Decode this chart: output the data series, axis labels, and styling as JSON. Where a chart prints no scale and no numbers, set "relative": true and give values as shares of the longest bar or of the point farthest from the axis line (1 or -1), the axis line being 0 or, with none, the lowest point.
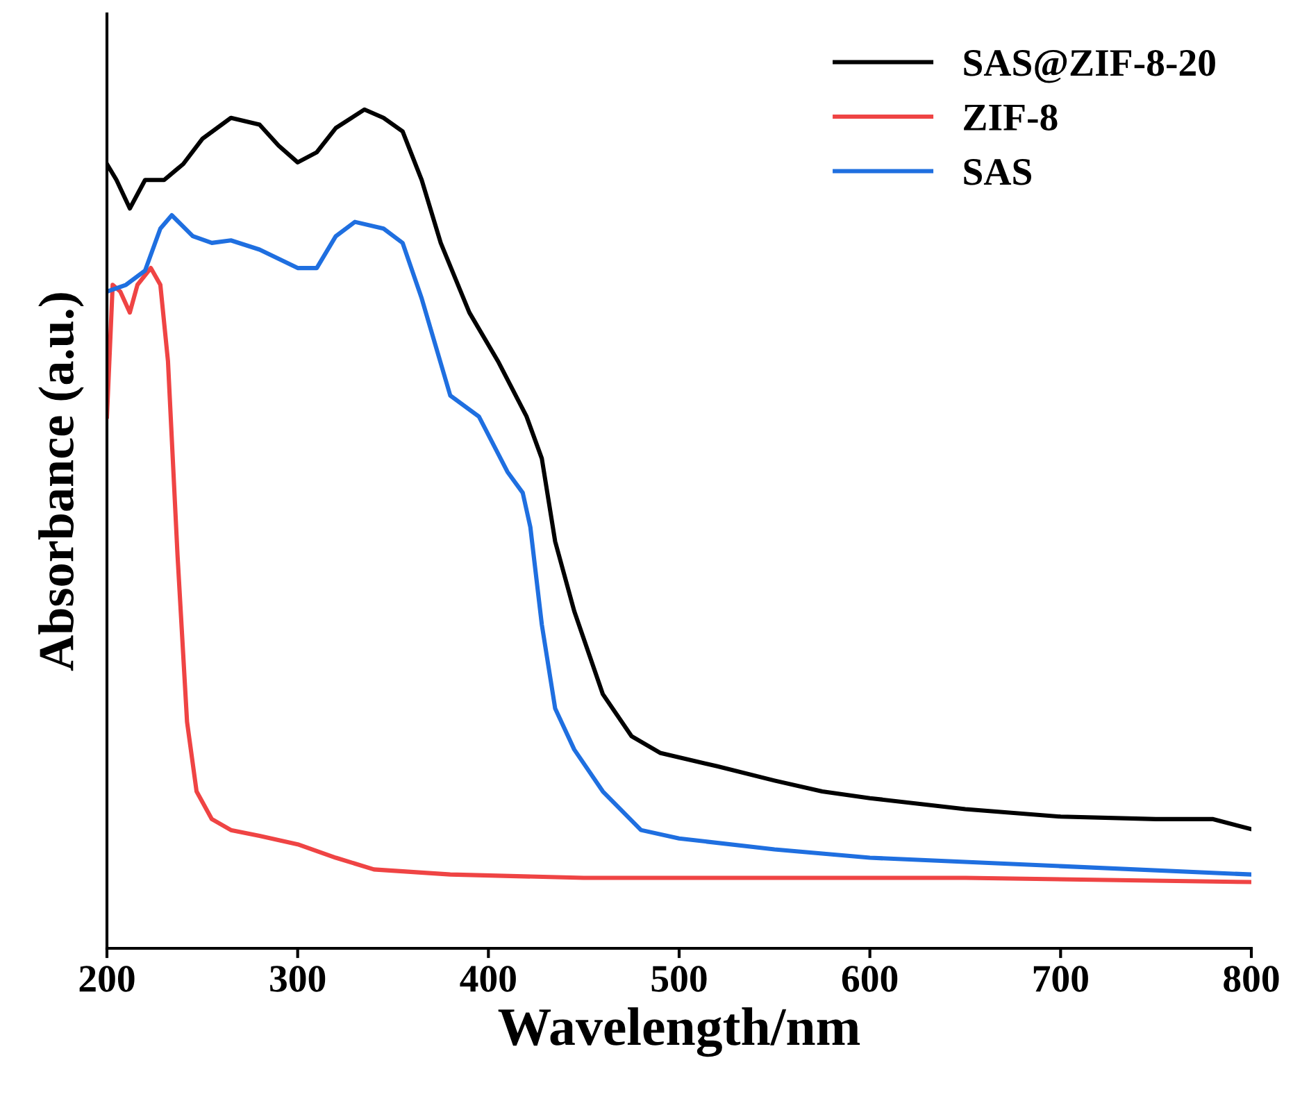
{
  "chart_data": {
    "type": "line",
    "xlabel": "Wavelength/nm",
    "ylabel": "Absorbance (a.u.)",
    "relative": true,
    "xlim": [
      200,
      800
    ],
    "xticks": [
      200,
      300,
      400,
      500,
      600,
      700,
      800
    ],
    "legend": "top right",
    "grid": false,
    "marker": "none",
    "line_style": "solid",
    "series": [
      {
        "name": "SAS@ZIF-8-20",
        "color": "#000000",
        "x": [
          200,
          205,
          212,
          220,
          230,
          240,
          250,
          265,
          280,
          290,
          300,
          310,
          320,
          335,
          345,
          355,
          365,
          375,
          390,
          405,
          420,
          428,
          435,
          445,
          460,
          475,
          490,
          520,
          550,
          575,
          600,
          650,
          700,
          750,
          780,
          800
        ],
        "values": [
          0.935,
          0.916,
          0.882,
          0.916,
          0.916,
          0.935,
          0.965,
          0.99,
          0.982,
          0.957,
          0.937,
          0.949,
          0.978,
          1.0,
          0.99,
          0.974,
          0.916,
          0.841,
          0.758,
          0.7,
          0.634,
          0.584,
          0.485,
          0.402,
          0.303,
          0.253,
          0.233,
          0.217,
          0.2,
          0.187,
          0.179,
          0.166,
          0.157,
          0.154,
          0.154,
          0.142
        ]
      },
      {
        "name": "ZIF-8",
        "color": "#ef4444",
        "x": [
          200,
          203,
          207,
          212,
          216,
          223,
          228,
          232,
          237,
          242,
          247,
          255,
          265,
          280,
          300,
          320,
          340,
          380,
          450,
          550,
          650,
          800
        ],
        "values": [
          0.634,
          0.791,
          0.783,
          0.758,
          0.791,
          0.811,
          0.791,
          0.7,
          0.469,
          0.27,
          0.187,
          0.154,
          0.141,
          0.134,
          0.124,
          0.108,
          0.094,
          0.088,
          0.084,
          0.084,
          0.084,
          0.079
        ]
      },
      {
        "name": "SAS",
        "color": "#1f6fe0",
        "x": [
          200,
          210,
          220,
          228,
          234,
          245,
          255,
          265,
          280,
          300,
          310,
          320,
          330,
          345,
          355,
          365,
          380,
          395,
          410,
          418,
          422,
          428,
          435,
          445,
          460,
          480,
          500,
          550,
          600,
          700,
          800
        ],
        "values": [
          0.783,
          0.791,
          0.808,
          0.858,
          0.874,
          0.849,
          0.841,
          0.844,
          0.833,
          0.811,
          0.811,
          0.849,
          0.866,
          0.858,
          0.841,
          0.775,
          0.659,
          0.634,
          0.568,
          0.543,
          0.502,
          0.386,
          0.286,
          0.237,
          0.187,
          0.141,
          0.131,
          0.118,
          0.108,
          0.098,
          0.088
        ]
      }
    ]
  }
}
